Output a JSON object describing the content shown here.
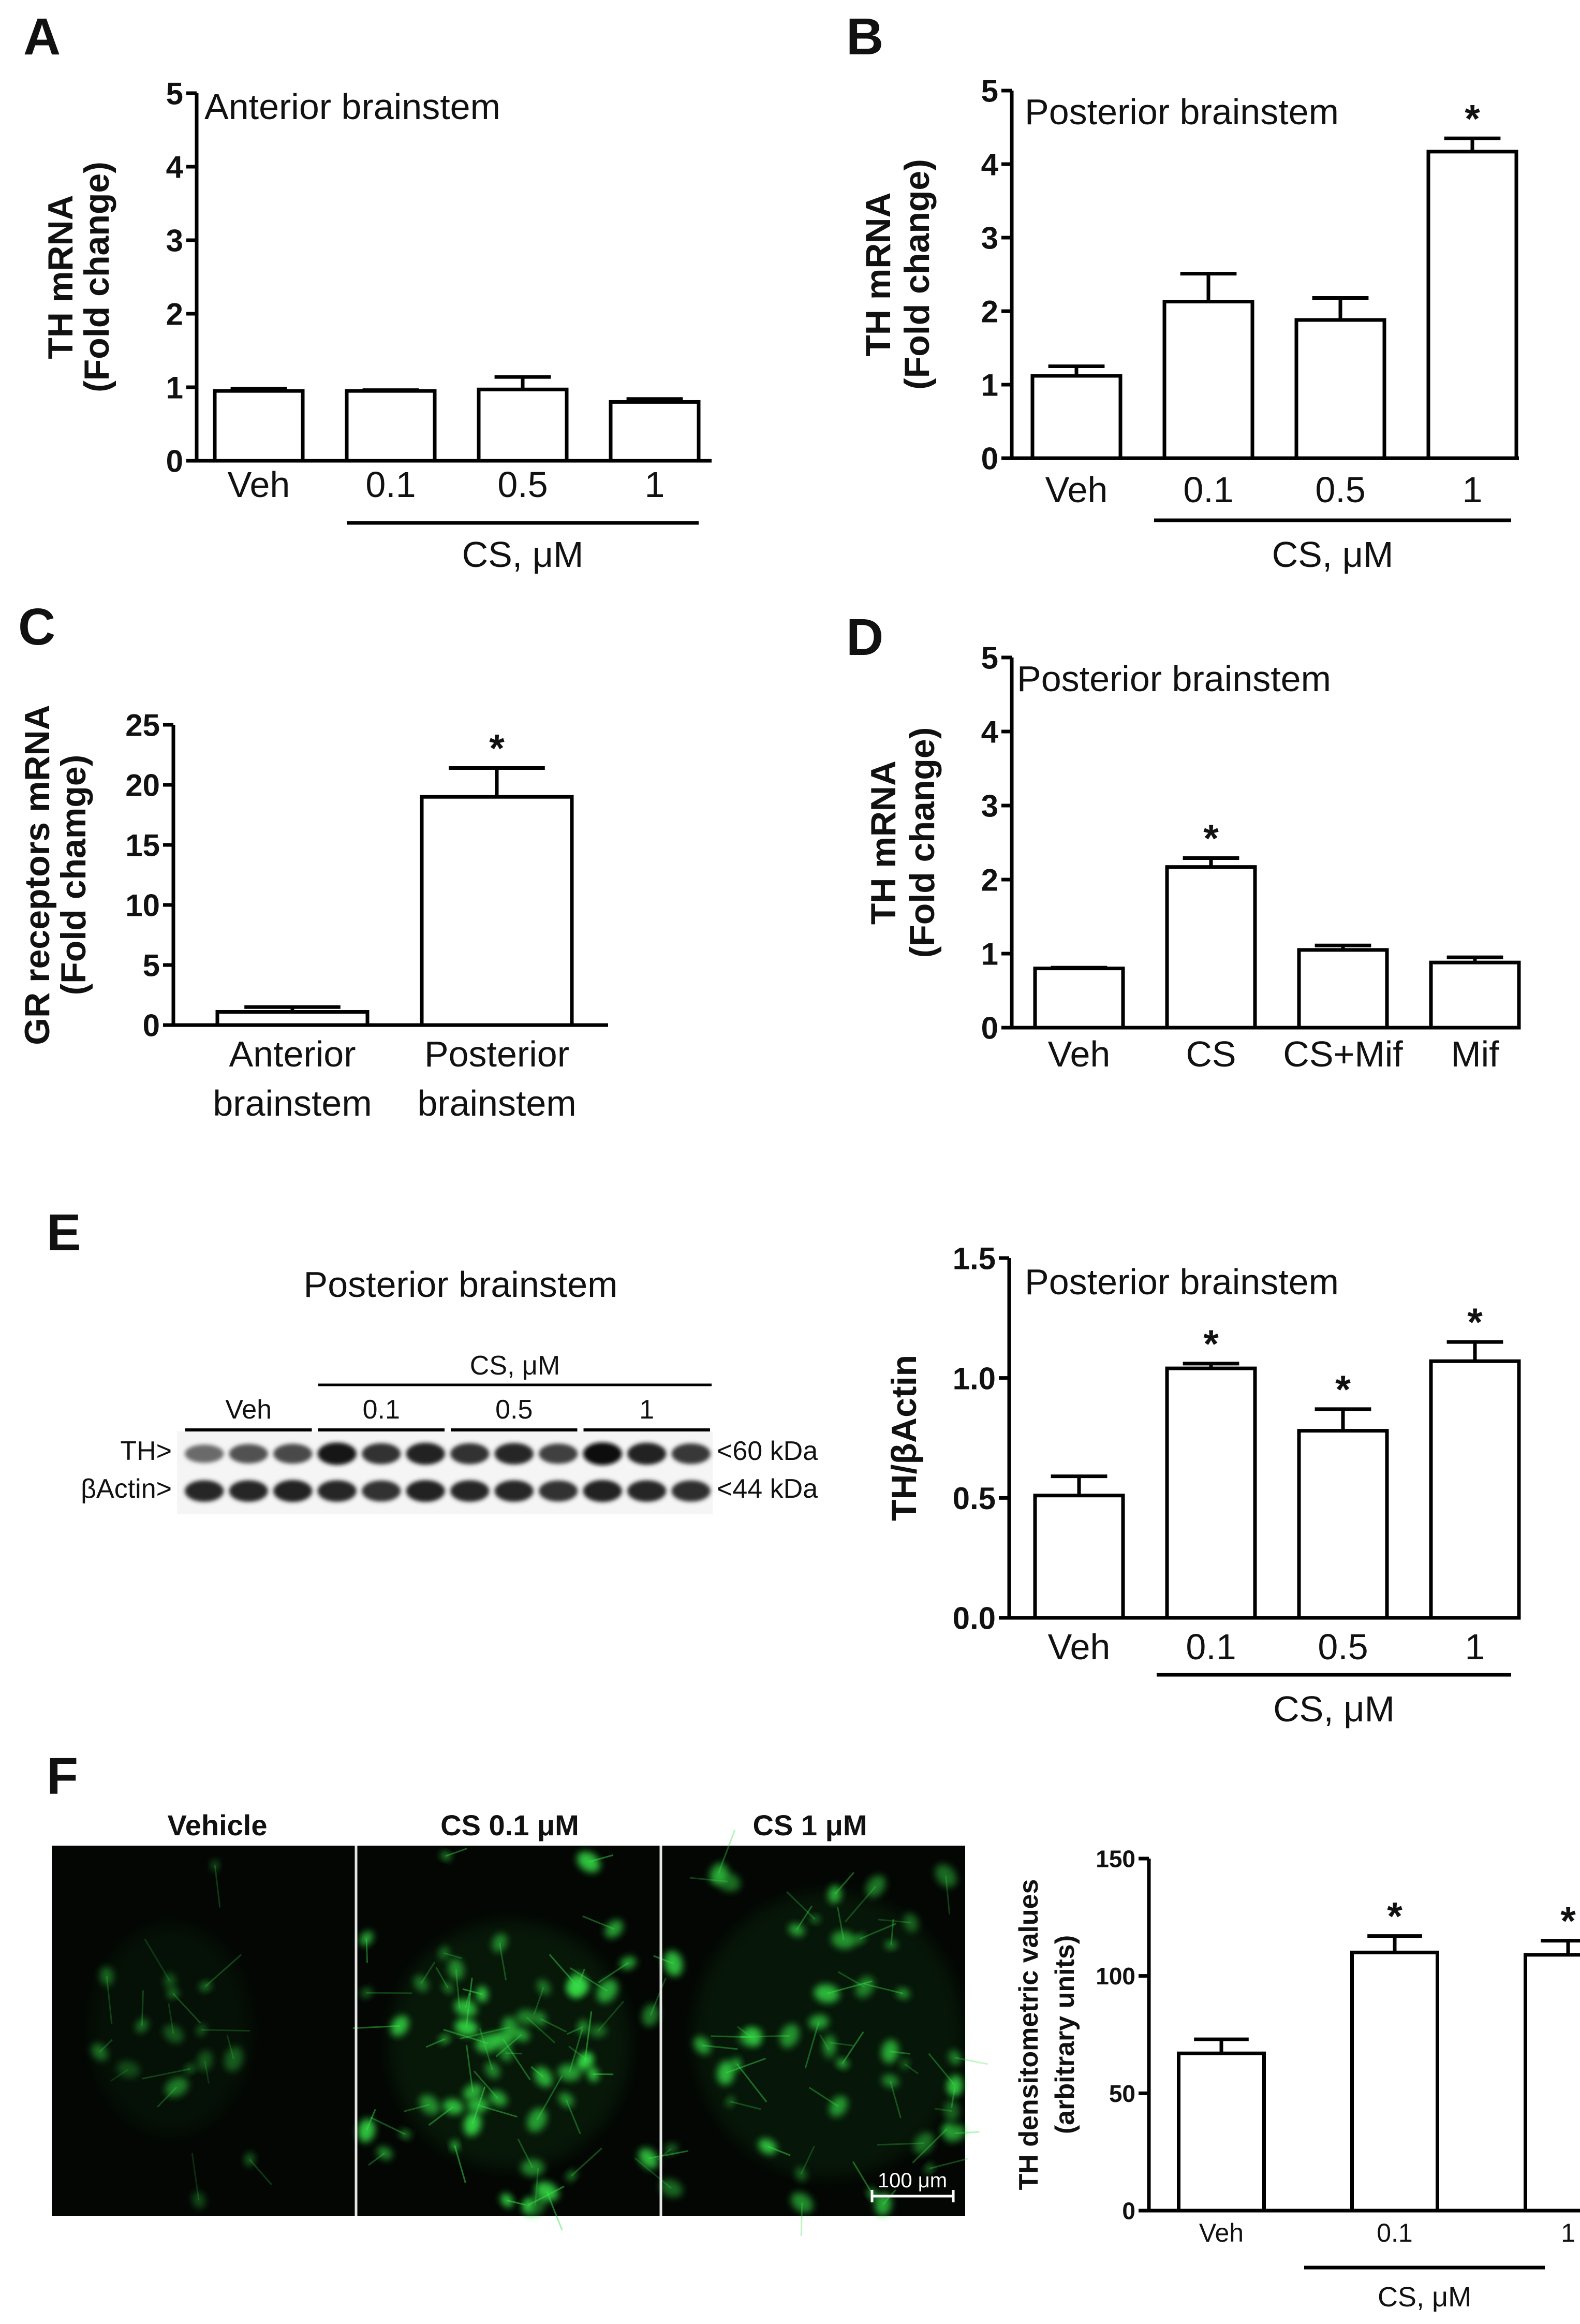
{
  "panels": [
    {
      "id": "A",
      "title": "Anterior brainstem",
      "ylabel": [
        "TH mRNA",
        "(Fold change)"
      ],
      "categories": [
        "Veh",
        "0.1",
        "0.5",
        "1"
      ],
      "values": [
        0.95,
        0.95,
        0.97,
        0.8
      ],
      "errors": [
        0.03,
        0.01,
        0.17,
        0.04
      ],
      "significant": [
        false,
        false,
        false,
        false
      ],
      "ylim": [
        0,
        5
      ],
      "yticks": [
        "0",
        "1",
        "2",
        "3",
        "4",
        "5"
      ],
      "group_label": "CS, μM"
    },
    {
      "id": "B",
      "title": "Posterior brainstem",
      "ylabel": [
        "TH mRNA",
        "(Fold change)"
      ],
      "categories": [
        "Veh",
        "0.1",
        "0.5",
        "1"
      ],
      "values": [
        1.12,
        2.13,
        1.88,
        4.17
      ],
      "errors": [
        0.13,
        0.38,
        0.3,
        0.18
      ],
      "significant": [
        false,
        false,
        false,
        true
      ],
      "ylim": [
        0,
        5
      ],
      "yticks": [
        "0",
        "1",
        "2",
        "3",
        "4",
        "5"
      ],
      "group_label": "CS, μM"
    },
    {
      "id": "C",
      "title": "",
      "ylabel": [
        "GR receptors mRNA",
        "(Fold chamge)"
      ],
      "categories": [
        [
          "Anterior",
          "brainstem"
        ],
        [
          "Posterior",
          "brainstem"
        ]
      ],
      "values": [
        1.1,
        19.0
      ],
      "errors": [
        0.4,
        2.4
      ],
      "significant": [
        false,
        true
      ],
      "ylim": [
        0,
        25
      ],
      "yticks": [
        "0",
        "5",
        "10",
        "15",
        "20",
        "25"
      ],
      "group_label": ""
    },
    {
      "id": "D",
      "title": "Posterior brainstem",
      "ylabel": [
        "TH mRNA",
        "(Fold change)"
      ],
      "categories": [
        "Veh",
        "CS",
        "CS+Mif",
        "Mif"
      ],
      "values": [
        0.8,
        2.17,
        1.05,
        0.88
      ],
      "errors": [
        0.01,
        0.12,
        0.06,
        0.07
      ],
      "significant": [
        false,
        true,
        false,
        false
      ],
      "ylim": [
        0,
        5
      ],
      "yticks": [
        "0",
        "1",
        "2",
        "3",
        "4",
        "5"
      ],
      "group_label": ""
    },
    {
      "id": "E",
      "title": "Posterior brainstem",
      "ylabel": [
        "TH/βActin"
      ],
      "categories": [
        "Veh",
        "0.1",
        "0.5",
        "1"
      ],
      "values": [
        0.51,
        1.04,
        0.78,
        1.07
      ],
      "errors": [
        0.08,
        0.02,
        0.09,
        0.08
      ],
      "significant": [
        false,
        true,
        true,
        true
      ],
      "ylim": [
        0,
        1.5
      ],
      "yticks": [
        "0.0",
        "0.5",
        "1.0",
        "1.5"
      ],
      "group_label": "CS, μM"
    },
    {
      "id": "F",
      "title": "",
      "ylabel": [
        "TH densitometric values",
        "(arbitrary units)"
      ],
      "categories": [
        "Veh",
        "0.1",
        "1"
      ],
      "values": [
        67,
        110,
        109
      ],
      "errors": [
        6,
        7,
        6
      ],
      "significant": [
        false,
        true,
        true
      ],
      "ylim": [
        0,
        150
      ],
      "yticks": [
        "0",
        "50",
        "100",
        "150"
      ],
      "group_label": "CS, μM"
    }
  ],
  "chart_data": [
    {
      "type": "bar",
      "panel": "A",
      "title": "Anterior brainstem",
      "ylabel": "TH mRNA (Fold change)",
      "categories": [
        "Veh",
        "0.1",
        "0.5",
        "1"
      ],
      "values": [
        0.95,
        0.95,
        0.97,
        0.8
      ],
      "error_bars": [
        0.03,
        0.01,
        0.17,
        0.04
      ],
      "ylim": [
        0,
        5
      ],
      "x_group_label": "CS, μM"
    },
    {
      "type": "bar",
      "panel": "B",
      "title": "Posterior brainstem",
      "ylabel": "TH mRNA (Fold change)",
      "categories": [
        "Veh",
        "0.1",
        "0.5",
        "1"
      ],
      "values": [
        1.12,
        2.13,
        1.88,
        4.17
      ],
      "error_bars": [
        0.13,
        0.38,
        0.3,
        0.18
      ],
      "significance": [
        "",
        "",
        "",
        "*"
      ],
      "ylim": [
        0,
        5
      ],
      "x_group_label": "CS, μM"
    },
    {
      "type": "bar",
      "panel": "C",
      "ylabel": "GR receptors mRNA (Fold chamge)",
      "categories": [
        "Anterior brainstem",
        "Posterior brainstem"
      ],
      "values": [
        1.1,
        19.0
      ],
      "error_bars": [
        0.4,
        2.4
      ],
      "significance": [
        "",
        "*"
      ],
      "ylim": [
        0,
        25
      ]
    },
    {
      "type": "bar",
      "panel": "D",
      "title": "Posterior brainstem",
      "ylabel": "TH mRNA (Fold change)",
      "categories": [
        "Veh",
        "CS",
        "CS+Mif",
        "Mif"
      ],
      "values": [
        0.8,
        2.17,
        1.05,
        0.88
      ],
      "error_bars": [
        0.01,
        0.12,
        0.06,
        0.07
      ],
      "significance": [
        "",
        "*",
        "",
        ""
      ],
      "ylim": [
        0,
        5
      ]
    },
    {
      "type": "bar",
      "panel": "E",
      "title": "Posterior brainstem",
      "ylabel": "TH/βActin",
      "categories": [
        "Veh",
        "0.1",
        "0.5",
        "1"
      ],
      "values": [
        0.51,
        1.04,
        0.78,
        1.07
      ],
      "error_bars": [
        0.08,
        0.02,
        0.09,
        0.08
      ],
      "significance": [
        "",
        "*",
        "*",
        "*"
      ],
      "ylim": [
        0,
        1.5
      ],
      "x_group_label": "CS, μM"
    },
    {
      "type": "bar",
      "panel": "F",
      "ylabel": "TH densitometric values (arbitrary units)",
      "categories": [
        "Veh",
        "0.1",
        "1"
      ],
      "values": [
        67,
        110,
        109
      ],
      "error_bars": [
        6,
        7,
        6
      ],
      "significance": [
        "",
        "*",
        "*"
      ],
      "ylim": [
        0,
        150
      ],
      "x_group_label": "CS, μM"
    }
  ],
  "blot": {
    "title": "Posterior brainstem",
    "group_label": "CS, μM",
    "lane_groups": [
      "Veh",
      "0.1",
      "0.5",
      "1"
    ],
    "rows": [
      {
        "label": "TH>",
        "marker": "<60 kDa",
        "intensities": [
          0.45,
          0.6,
          0.65,
          0.95,
          0.8,
          0.9,
          0.8,
          0.85,
          0.7,
          1.0,
          0.9,
          0.75
        ]
      },
      {
        "label": "βActin>",
        "marker": "<44 kDa",
        "intensities": [
          0.85,
          0.85,
          0.9,
          0.85,
          0.8,
          0.88,
          0.85,
          0.85,
          0.8,
          0.9,
          0.85,
          0.82
        ]
      }
    ]
  },
  "micrographs": {
    "labels": [
      "Vehicle",
      "CS 0.1 μM",
      "CS 1 μM"
    ],
    "scale_bar": "100 μm",
    "colors": {
      "background": "#030603",
      "signal": "#39e34a"
    }
  },
  "star_symbol": "*"
}
